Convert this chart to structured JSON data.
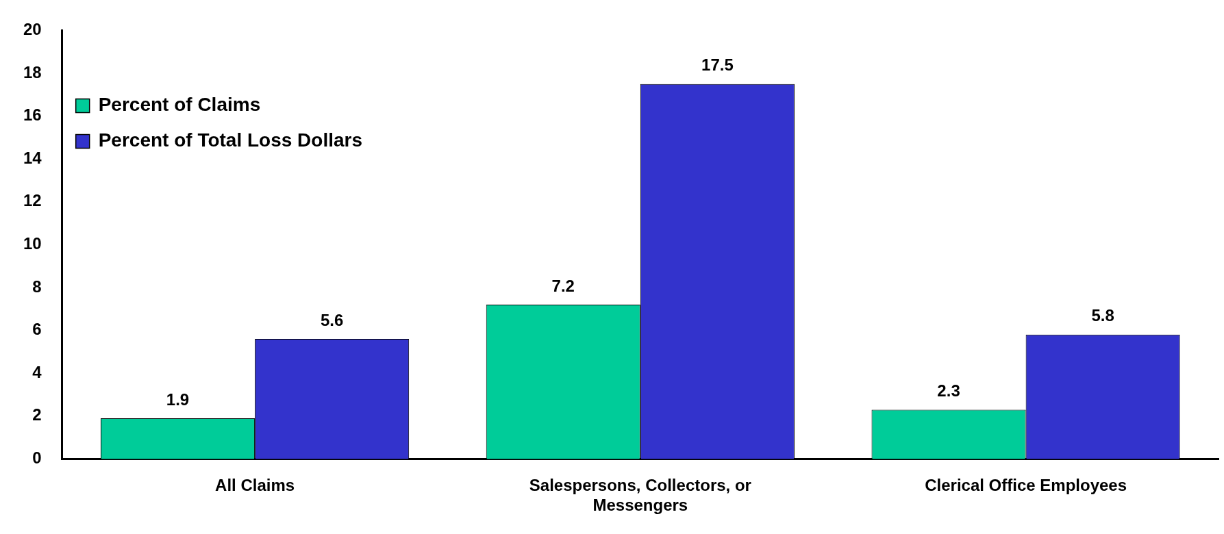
{
  "chart_data": {
    "type": "bar",
    "categories": [
      "All Claims",
      "Salespersons, Collectors, or Messengers",
      "Clerical Office Employees"
    ],
    "series": [
      {
        "name": "Percent of Claims",
        "color": "#00cc99",
        "values": [
          1.9,
          7.2,
          2.3
        ]
      },
      {
        "name": "Percent of Total Loss Dollars",
        "color": "#3333cc",
        "values": [
          5.6,
          17.5,
          5.8
        ]
      }
    ],
    "ylim": [
      0,
      20
    ],
    "yticks": [
      0,
      2,
      4,
      6,
      8,
      10,
      12,
      14,
      16,
      18,
      20
    ],
    "grid": false,
    "legend": "top left",
    "data_labels": true
  }
}
